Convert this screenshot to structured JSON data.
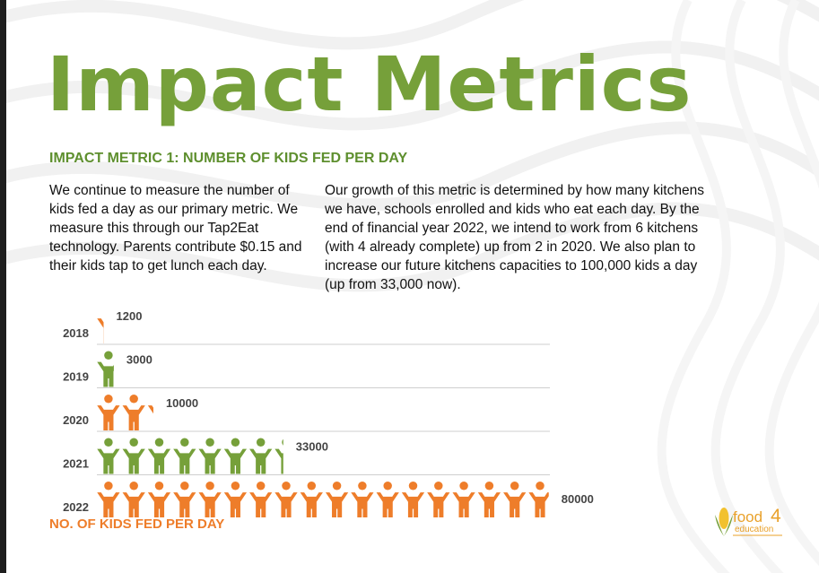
{
  "title": "Impact Metrics",
  "subtitle": "IMPACT METRIC 1: NUMBER OF KIDS FED PER DAY",
  "paragraph_left": "We continue to measure the number of kids fed a day as our primary metric. We measure this through our Tap2Eat technology. Parents contribute $0.15 and their kids tap to get lunch each day.",
  "paragraph_right": "Our growth of this metric is determined by how many kitchens we have, schools enrolled and kids who eat each day. By the end of financial year 2022, we intend to work from 6 kitchens (with 4 already complete) up from 2 in 2020. We also plan to increase our future kitchens capacities to 100,000 kids a day (up from 33,000 now).",
  "logo": {
    "text_main": "food",
    "text_digit": "4",
    "text_sub": "education",
    "icon": "corn-icon"
  },
  "colors": {
    "green": "#76a03a",
    "orange": "#ee7d2a",
    "text": "#111111",
    "label": "#444444"
  },
  "chart_data": {
    "type": "bar",
    "orientation": "horizontal",
    "mark": "pictogram-kid-icon",
    "categories": [
      "2018",
      "2019",
      "2020",
      "2021",
      "2022"
    ],
    "values": [
      1200,
      3000,
      10000,
      33000,
      80000
    ],
    "data_labels": [
      "1200",
      "3000",
      "10000",
      "33000",
      "80000"
    ],
    "bar_colors": [
      "#ee7d2a",
      "#76a03a",
      "#ee7d2a",
      "#76a03a",
      "#ee7d2a"
    ],
    "xlabel": "NO. OF KIDS FED PER DAY",
    "ylabel": "",
    "xlim": [
      0,
      80000
    ],
    "grid": true
  }
}
